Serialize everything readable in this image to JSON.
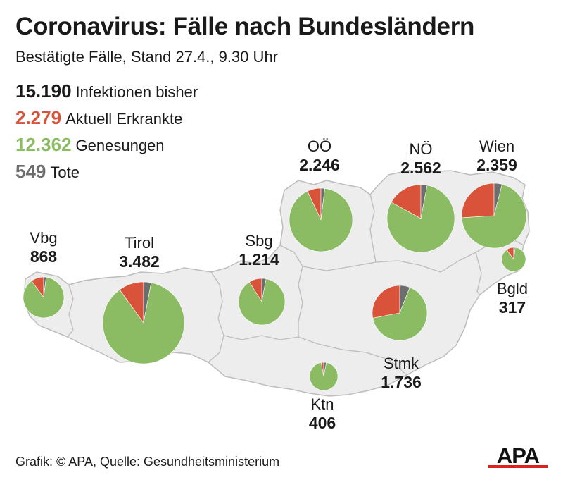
{
  "header": {
    "title": "Coronavirus: Fälle nach Bundesländern",
    "subtitle": "Bestätigte Fälle, Stand 27.4., 9.30 Uhr"
  },
  "stats": [
    {
      "value": "15.190",
      "label": "Infektionen bisher",
      "color": "#1a1a1a"
    },
    {
      "value": "2.279",
      "label": "Aktuell Erkrankte",
      "color": "#d9533a"
    },
    {
      "value": "12.362",
      "label": "Genesungen",
      "color": "#8bbb63"
    },
    {
      "value": "549",
      "label": "Tote",
      "color": "#6d6d6d"
    }
  ],
  "colors": {
    "active": "#d9533a",
    "recovered": "#8bbb63",
    "deaths": "#6d6d6d",
    "map_fill": "#ededed",
    "map_border": "#bdbdbd"
  },
  "chart_data": {
    "type": "pie",
    "series_names": [
      "Aktuell Erkrankte",
      "Tote",
      "Genesungen"
    ],
    "regions": [
      {
        "name": "Vbg",
        "total": "868",
        "active_share": 0.1,
        "deaths_share": 0.02
      },
      {
        "name": "Tirol",
        "total": "3.482",
        "active_share": 0.1,
        "deaths_share": 0.03
      },
      {
        "name": "Sbg",
        "total": "1.214",
        "active_share": 0.09,
        "deaths_share": 0.03
      },
      {
        "name": "OÖ",
        "total": "2.246",
        "active_share": 0.07,
        "deaths_share": 0.02
      },
      {
        "name": "NÖ",
        "total": "2.562",
        "active_share": 0.17,
        "deaths_share": 0.03
      },
      {
        "name": "Wien",
        "total": "2.359",
        "active_share": 0.26,
        "deaths_share": 0.04
      },
      {
        "name": "Bgld",
        "total": "317",
        "active_share": 0.1,
        "deaths_share": 0.02
      },
      {
        "name": "Stmk",
        "total": "1.736",
        "active_share": 0.28,
        "deaths_share": 0.06
      },
      {
        "name": "Ktn",
        "total": "406",
        "active_share": 0.03,
        "deaths_share": 0.03
      }
    ]
  },
  "footer": {
    "source": "Grafik: © APA, Quelle: Gesundheitsministerium",
    "logo_text": "APA"
  }
}
